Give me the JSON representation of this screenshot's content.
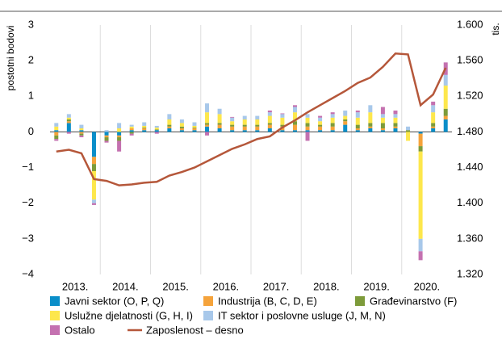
{
  "chart_data": {
    "type": "bar",
    "ylabel": "postotni bodovi",
    "y2label": "tis.",
    "categories": [
      "2013.",
      null,
      null,
      null,
      "2014.",
      null,
      null,
      null,
      "2015.",
      null,
      null,
      null,
      "2016.",
      null,
      null,
      null,
      "2017.",
      null,
      null,
      null,
      "2018.",
      null,
      null,
      null,
      "2019.",
      null,
      null,
      null,
      "2020.",
      null,
      null,
      null
    ],
    "ylim": [
      -4,
      3
    ],
    "yticks": [
      {
        "value": -4,
        "label": "−4"
      },
      {
        "value": -3,
        "label": "−3"
      },
      {
        "value": -2,
        "label": "−2"
      },
      {
        "value": -1,
        "label": "−1"
      },
      0,
      1,
      2,
      3
    ],
    "y2lim": [
      1320,
      1600
    ],
    "y2ticks": [
      {
        "value": 1320,
        "label": "1.320"
      },
      {
        "value": 1360,
        "label": "1.360"
      },
      {
        "value": 1400,
        "label": "1.400"
      },
      {
        "value": 1440,
        "label": "1.440"
      },
      {
        "value": 1480,
        "label": "1.480"
      },
      {
        "value": 1520,
        "label": "1.520"
      },
      {
        "value": 1560,
        "label": "1.560"
      },
      {
        "value": 1600,
        "label": "1.600"
      }
    ],
    "stacked": true,
    "series": [
      {
        "name": "Javni sektor (O, P, Q)",
        "color": "#0a8ec9",
        "values": [
          0.05,
          0.25,
          0.05,
          -0.7,
          -0.1,
          -0.1,
          0.05,
          0.05,
          0.05,
          0.1,
          0.05,
          0.05,
          0.15,
          0.1,
          0.05,
          0.05,
          0.05,
          0.1,
          0.05,
          0.05,
          0.05,
          0.05,
          0.05,
          0.2,
          0.05,
          0.1,
          0.05,
          0.1,
          0.0,
          -0.05,
          0.1,
          0.35
        ]
      },
      {
        "name": "Industrija (B, C, D, E)",
        "color": "#f5a33b",
        "values": [
          -0.1,
          0.05,
          -0.05,
          -0.2,
          -0.05,
          -0.05,
          0.05,
          0.05,
          0.0,
          0.05,
          0.05,
          0.05,
          0.05,
          0.1,
          0.1,
          0.1,
          0.1,
          0.1,
          0.1,
          0.15,
          0.1,
          0.1,
          0.1,
          0.1,
          0.05,
          0.05,
          0.05,
          0.05,
          0.0,
          -0.35,
          0.05,
          0.1
        ]
      },
      {
        "name": "Građevinarstvo (F)",
        "color": "#7d9b3a",
        "values": [
          -0.1,
          0.05,
          -0.05,
          -0.2,
          -0.1,
          -0.1,
          -0.05,
          0.02,
          0.02,
          0.05,
          0.05,
          0.02,
          0.05,
          0.05,
          0.05,
          0.05,
          0.05,
          0.05,
          0.05,
          0.1,
          0.1,
          0.05,
          0.1,
          0.05,
          0.1,
          0.1,
          0.15,
          0.1,
          0.05,
          -0.15,
          0.1,
          0.2
        ]
      },
      {
        "name": "Uslužne djelatnosti (G, H, I)",
        "color": "#fde74c",
        "values": [
          0.1,
          0.05,
          0.05,
          -0.8,
          0.0,
          0.1,
          0.05,
          0.05,
          0.05,
          0.15,
          0.1,
          0.05,
          0.3,
          0.25,
          0.1,
          0.15,
          0.15,
          0.2,
          0.2,
          0.25,
          0.15,
          0.1,
          0.15,
          0.1,
          0.2,
          0.3,
          0.15,
          0.15,
          -0.25,
          -2.45,
          0.3,
          0.65
        ]
      },
      {
        "name": "IT sektor i poslovne usluge (J, M, N)",
        "color": "#a8c8ea",
        "values": [
          0.1,
          0.1,
          0.1,
          -0.1,
          0.05,
          0.15,
          0.05,
          0.1,
          0.05,
          0.15,
          0.1,
          0.1,
          0.25,
          0.15,
          0.1,
          0.1,
          0.1,
          0.1,
          0.1,
          0.15,
          0.1,
          0.1,
          0.1,
          0.15,
          0.15,
          0.2,
          0.1,
          0.1,
          0.1,
          -0.35,
          0.2,
          0.3
        ]
      },
      {
        "name": "Ostalo",
        "color": "#c471b0",
        "values": [
          -0.05,
          -0.05,
          -0.05,
          -0.05,
          -0.05,
          -0.3,
          -0.05,
          0.0,
          -0.05,
          0.0,
          0.0,
          0.0,
          -0.1,
          0.0,
          0.02,
          0.0,
          0.0,
          0.05,
          0.02,
          0.05,
          -0.25,
          0.05,
          0.05,
          0.0,
          0.05,
          0.0,
          0.2,
          0.1,
          0.0,
          -0.25,
          0.1,
          0.35
        ]
      },
      {
        "name": "Zaposlenost – desno",
        "color": "#b5573a",
        "type": "line",
        "axis": "y2",
        "values": [
          1458,
          1460,
          1456,
          1427,
          1425,
          1420,
          1421,
          1423,
          1424,
          1431,
          1435,
          1440,
          1447,
          1454,
          1461,
          1466,
          1472,
          1475,
          1485,
          1493,
          1502,
          1510,
          1518,
          1526,
          1535,
          1541,
          1553,
          1568,
          1567,
          1510,
          1522,
          1552
        ]
      }
    ]
  }
}
